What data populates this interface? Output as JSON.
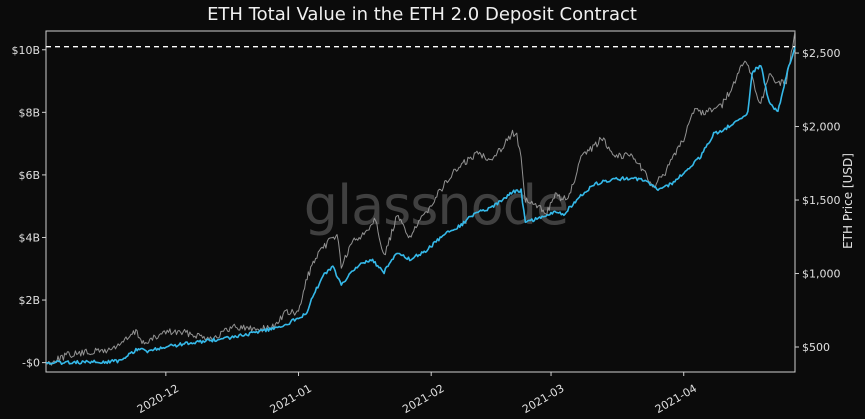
{
  "chart_data": {
    "type": "line",
    "title": "ETH Total Value in the ETH 2.0 Deposit Contract",
    "watermark": "glassnode",
    "xlabel": "",
    "ylabel_left": "",
    "ylabel_right": "ETH Price [USD]",
    "x_range": [
      "2020-11-03",
      "2021-04-27"
    ],
    "x_ticks": [
      {
        "date": "2020-12-01",
        "label": "2020-12"
      },
      {
        "date": "2021-01-01",
        "label": "2021-01"
      },
      {
        "date": "2021-02-01",
        "label": "2021-02"
      },
      {
        "date": "2021-03-01",
        "label": "2021-03"
      },
      {
        "date": "2021-04-01",
        "label": "2021-04"
      }
    ],
    "y_left": {
      "range": [
        -0.3,
        10.6
      ],
      "unit": "B USD",
      "ticks": [
        {
          "value": 0,
          "label": "-$0"
        },
        {
          "value": 2,
          "label": "$2B"
        },
        {
          "value": 4,
          "label": "$4B"
        },
        {
          "value": 6,
          "label": "$6B"
        },
        {
          "value": 8,
          "label": "$8B"
        },
        {
          "value": 10,
          "label": "$10B"
        }
      ]
    },
    "y_right": {
      "range": [
        330,
        2650
      ],
      "unit": "USD",
      "ticks": [
        {
          "value": 500,
          "label": "$500"
        },
        {
          "value": 1000,
          "label": "$1,000"
        },
        {
          "value": 1500,
          "label": "$1,500"
        },
        {
          "value": 2000,
          "label": "$2,000"
        },
        {
          "value": 2500,
          "label": "$2,500"
        }
      ]
    },
    "reference_line": {
      "value": 10.1,
      "axis": "left",
      "style": "dashed",
      "color": "#ffffff"
    },
    "series": [
      {
        "name": "Total Value in ETH 2.0 Deposit Contract",
        "axis": "left",
        "color": "#35b9e9",
        "points": [
          [
            "2020-11-03",
            0.0
          ],
          [
            "2020-11-10",
            0.01
          ],
          [
            "2020-11-17",
            0.02
          ],
          [
            "2020-11-20",
            0.05
          ],
          [
            "2020-11-23",
            0.3
          ],
          [
            "2020-11-24",
            0.42
          ],
          [
            "2020-11-27",
            0.37
          ],
          [
            "2020-12-01",
            0.5
          ],
          [
            "2020-12-05",
            0.6
          ],
          [
            "2020-12-10",
            0.68
          ],
          [
            "2020-12-15",
            0.78
          ],
          [
            "2020-12-20",
            0.9
          ],
          [
            "2020-12-25",
            1.05
          ],
          [
            "2020-12-29",
            1.2
          ],
          [
            "2021-01-01",
            1.45
          ],
          [
            "2021-01-03",
            1.55
          ],
          [
            "2021-01-04",
            2.05
          ],
          [
            "2021-01-07",
            2.8
          ],
          [
            "2021-01-09",
            3.05
          ],
          [
            "2021-01-11",
            2.5
          ],
          [
            "2021-01-15",
            3.1
          ],
          [
            "2021-01-18",
            3.3
          ],
          [
            "2021-01-21",
            2.9
          ],
          [
            "2021-01-24",
            3.5
          ],
          [
            "2021-01-27",
            3.3
          ],
          [
            "2021-01-31",
            3.6
          ],
          [
            "2021-02-04",
            4.1
          ],
          [
            "2021-02-08",
            4.4
          ],
          [
            "2021-02-11",
            4.75
          ],
          [
            "2021-02-15",
            4.95
          ],
          [
            "2021-02-18",
            5.25
          ],
          [
            "2021-02-20",
            5.45
          ],
          [
            "2021-02-22",
            5.5
          ],
          [
            "2021-02-23",
            4.5
          ],
          [
            "2021-02-26",
            4.6
          ],
          [
            "2021-03-01",
            4.8
          ],
          [
            "2021-03-04",
            4.75
          ],
          [
            "2021-03-07",
            5.2
          ],
          [
            "2021-03-11",
            5.7
          ],
          [
            "2021-03-15",
            5.85
          ],
          [
            "2021-03-19",
            5.9
          ],
          [
            "2021-03-23",
            5.85
          ],
          [
            "2021-03-26",
            5.5
          ],
          [
            "2021-03-29",
            5.7
          ],
          [
            "2021-04-02",
            6.2
          ],
          [
            "2021-04-05",
            6.6
          ],
          [
            "2021-04-08",
            7.3
          ],
          [
            "2021-04-11",
            7.5
          ],
          [
            "2021-04-14",
            7.8
          ],
          [
            "2021-04-16",
            8.0
          ],
          [
            "2021-04-17",
            9.3
          ],
          [
            "2021-04-19",
            9.5
          ],
          [
            "2021-04-21",
            8.3
          ],
          [
            "2021-04-23",
            8.0
          ],
          [
            "2021-04-25",
            9.2
          ],
          [
            "2021-04-27",
            10.1
          ]
        ]
      },
      {
        "name": "ETH Price [USD]",
        "axis": "right",
        "color": "#9a9a9a",
        "points": [
          [
            "2020-11-03",
            385
          ],
          [
            "2020-11-08",
            445
          ],
          [
            "2020-11-13",
            465
          ],
          [
            "2020-11-18",
            480
          ],
          [
            "2020-11-22",
            555
          ],
          [
            "2020-11-24",
            605
          ],
          [
            "2020-11-26",
            520
          ],
          [
            "2020-12-01",
            605
          ],
          [
            "2020-12-06",
            595
          ],
          [
            "2020-12-12",
            560
          ],
          [
            "2020-12-17",
            640
          ],
          [
            "2020-12-22",
            620
          ],
          [
            "2020-12-26",
            635
          ],
          [
            "2020-12-29",
            735
          ],
          [
            "2021-01-01",
            730
          ],
          [
            "2021-01-03",
            975
          ],
          [
            "2021-01-05",
            1100
          ],
          [
            "2021-01-08",
            1220
          ],
          [
            "2021-01-10",
            1270
          ],
          [
            "2021-01-11",
            1050
          ],
          [
            "2021-01-14",
            1230
          ],
          [
            "2021-01-16",
            1260
          ],
          [
            "2021-01-19",
            1380
          ],
          [
            "2021-01-21",
            1110
          ],
          [
            "2021-01-24",
            1390
          ],
          [
            "2021-01-27",
            1250
          ],
          [
            "2021-01-30",
            1380
          ],
          [
            "2021-02-02",
            1520
          ],
          [
            "2021-02-06",
            1680
          ],
          [
            "2021-02-09",
            1760
          ],
          [
            "2021-02-12",
            1820
          ],
          [
            "2021-02-15",
            1780
          ],
          [
            "2021-02-17",
            1840
          ],
          [
            "2021-02-20",
            1960
          ],
          [
            "2021-02-21",
            1940
          ],
          [
            "2021-02-22",
            1770
          ],
          [
            "2021-02-23",
            1500
          ],
          [
            "2021-02-26",
            1450
          ],
          [
            "2021-02-28",
            1420
          ],
          [
            "2021-03-02",
            1530
          ],
          [
            "2021-03-05",
            1500
          ],
          [
            "2021-03-08",
            1780
          ],
          [
            "2021-03-13",
            1920
          ],
          [
            "2021-03-16",
            1800
          ],
          [
            "2021-03-20",
            1810
          ],
          [
            "2021-03-23",
            1680
          ],
          [
            "2021-03-25",
            1590
          ],
          [
            "2021-03-28",
            1700
          ],
          [
            "2021-04-01",
            1920
          ],
          [
            "2021-04-03",
            2100
          ],
          [
            "2021-04-06",
            2100
          ],
          [
            "2021-04-10",
            2150
          ],
          [
            "2021-04-13",
            2300
          ],
          [
            "2021-04-15",
            2450
          ],
          [
            "2021-04-17",
            2350
          ],
          [
            "2021-04-18",
            2200
          ],
          [
            "2021-04-19",
            2150
          ],
          [
            "2021-04-21",
            2350
          ],
          [
            "2021-04-23",
            2300
          ],
          [
            "2021-04-25",
            2300
          ],
          [
            "2021-04-27",
            2650
          ]
        ]
      }
    ]
  }
}
